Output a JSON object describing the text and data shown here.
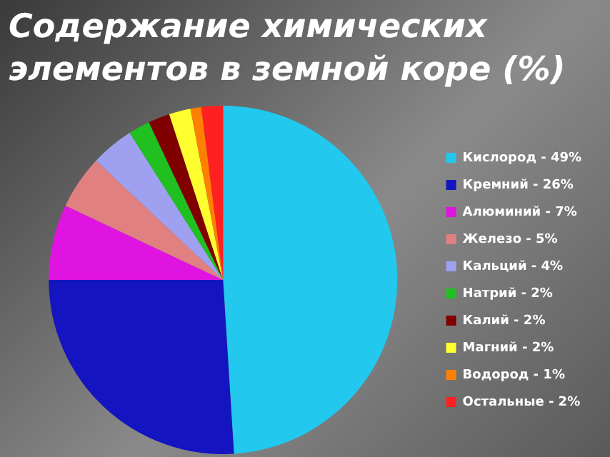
{
  "chart_data": {
    "type": "pie",
    "title": "Содержание химических элементов в земной коре (%)",
    "categories": [
      "Кислород - 49%",
      "Кремний - 26%",
      "Алюминий - 7%",
      "Железо - 5%",
      "Кальций - 4%",
      "Натрий - 2%",
      "Калий - 2%",
      "Магний - 2%",
      "Водород - 1%",
      "Остальные - 2%"
    ],
    "values": [
      49,
      26,
      7,
      5,
      4,
      2,
      2,
      2,
      1,
      2
    ],
    "colors": [
      "#22c8ee",
      "#1414c0",
      "#e014e0",
      "#e08080",
      "#a0a0f0",
      "#20c020",
      "#800000",
      "#ffff30",
      "#ff8000",
      "#ff2020"
    ],
    "legend": "right"
  }
}
